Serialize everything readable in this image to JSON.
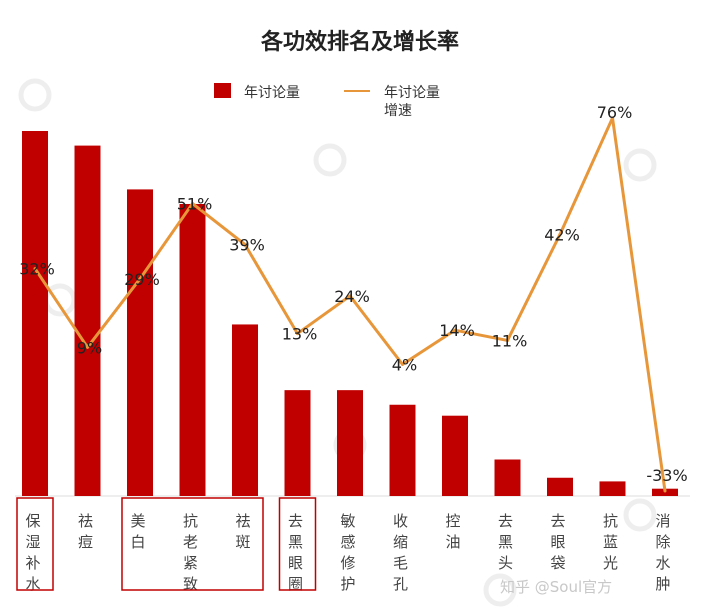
{
  "chart_data": {
    "type": "bar",
    "title": "各功效排名及增长率",
    "categories": [
      "保湿补水",
      "祛痘",
      "美白",
      "抗老紧致",
      "祛斑",
      "去黑眼圈",
      "敏感修护",
      "收缩毛孔",
      "控油",
      "去黑头",
      "去眼袋",
      "抗蓝光",
      "消除水肿"
    ],
    "series": [
      {
        "name": "年讨论量",
        "type": "bar",
        "color": "#c00000",
        "values": [
          100,
          96,
          84,
          80,
          47,
          29,
          29,
          25,
          22,
          10,
          5,
          4,
          2
        ]
      },
      {
        "name": "年讨论量增速",
        "type": "line",
        "color": "#e8963a",
        "unit": "%",
        "values": [
          32,
          9,
          29,
          51,
          39,
          13,
          24,
          4,
          14,
          11,
          42,
          76,
          -33
        ]
      }
    ],
    "data_labels": [
      "32%",
      "9%",
      "29%",
      "51%",
      "39%",
      "13%",
      "24%",
      "4%",
      "14%",
      "11%",
      "42%",
      "76%",
      "-33%"
    ],
    "legend": {
      "position": "top-center"
    },
    "grid": false,
    "highlighted_groups": [
      [
        0
      ],
      [
        2,
        3,
        4
      ],
      [
        5
      ]
    ]
  },
  "watermark": {
    "text": "知乎 @Soul官方"
  }
}
